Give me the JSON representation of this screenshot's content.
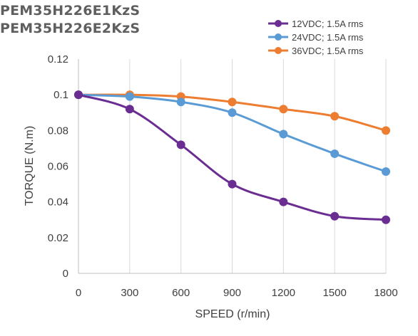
{
  "titles": [
    "PEM35H226E1KzS",
    "PEM35H226E2KzS"
  ],
  "chart_data": {
    "type": "line",
    "xlabel": "SPEED  (r/min)",
    "ylabel": "TORQUE  (N.m)",
    "x": [
      0,
      300,
      600,
      900,
      1200,
      1500,
      1800
    ],
    "x_tick_labels": [
      "0",
      "300",
      "600",
      "900",
      "1200",
      "1500",
      "1800"
    ],
    "y_tick_labels": [
      "0",
      "0.02",
      "0.04",
      "0.06",
      "0.08",
      "0.1",
      "0.12"
    ],
    "xlim": [
      0,
      1800
    ],
    "ylim": [
      0,
      0.12
    ],
    "grid": "vertical",
    "legend": "top-right",
    "series": [
      {
        "name": "12VDC; 1.5A rms",
        "color": "#6a2d91",
        "values": [
          0.1,
          0.092,
          0.072,
          0.05,
          0.04,
          0.032,
          0.03
        ]
      },
      {
        "name": "24VDC; 1.5A rms",
        "color": "#5b9bd5",
        "values": [
          0.1,
          0.099,
          0.096,
          0.09,
          0.078,
          0.067,
          0.057
        ]
      },
      {
        "name": "36VDC; 1.5A rms",
        "color": "#ed7d31",
        "values": [
          0.1,
          0.1,
          0.099,
          0.096,
          0.092,
          0.088,
          0.08
        ]
      }
    ]
  }
}
